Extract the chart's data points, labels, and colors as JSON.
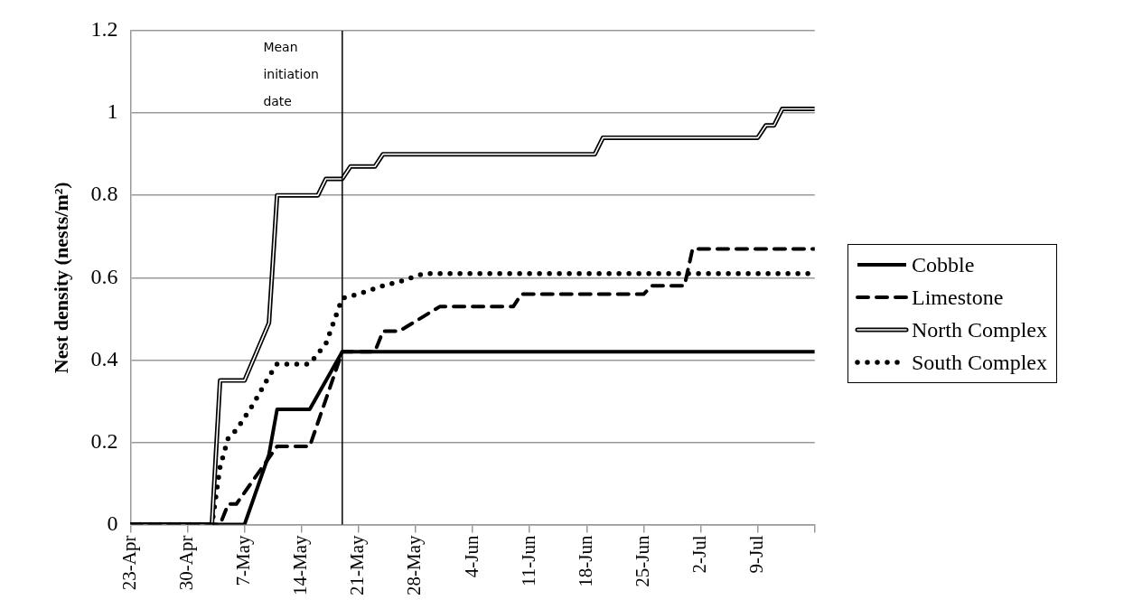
{
  "chart_data": {
    "type": "line",
    "ylabel": "Nest density (nests/m²)",
    "xlim": [
      "--04-23",
      "--07-16"
    ],
    "xticks": [
      {
        "value": "--04-23",
        "label": "23-Apr"
      },
      {
        "value": "--04-30",
        "label": "30-Apr"
      },
      {
        "value": "--05-07",
        "label": "7-May"
      },
      {
        "value": "--05-14",
        "label": "14-May"
      },
      {
        "value": "--05-21",
        "label": "21-May"
      },
      {
        "value": "--05-28",
        "label": "28-May"
      },
      {
        "value": "--06-04",
        "label": "4-Jun"
      },
      {
        "value": "--06-11",
        "label": "11-Jun"
      },
      {
        "value": "--06-18",
        "label": "18-Jun"
      },
      {
        "value": "--06-25",
        "label": "25-Jun"
      },
      {
        "value": "--07-02",
        "label": "2-Jul"
      },
      {
        "value": "--07-09",
        "label": "9-Jul"
      },
      {
        "value": "--07-16",
        "label": null
      }
    ],
    "ylim": [
      0,
      1.2
    ],
    "yticks": [
      0,
      0.2,
      0.4,
      0.6,
      0.8,
      1,
      1.2
    ],
    "grid": "y",
    "legend": "right",
    "ref_lines": [
      {
        "axis": "x",
        "value": "--05-19",
        "label": "Mean initiation date",
        "color": "#000000"
      }
    ],
    "series": [
      {
        "name": "Cobble",
        "color": "#000000",
        "line_style": "solid",
        "x": [
          "--04-23",
          "--05-07",
          "--05-10",
          "--05-11",
          "--05-15",
          "--05-19",
          "--07-16"
        ],
        "values": [
          0,
          0,
          0.17,
          0.28,
          0.28,
          0.42,
          0.42
        ]
      },
      {
        "name": "Limestone",
        "color": "#000000",
        "line_style": "dashed",
        "x": [
          "--04-23",
          "--05-04",
          "--05-05",
          "--05-06",
          "--05-11",
          "--05-15",
          "--05-19",
          "--05-23",
          "--05-24",
          "--05-26",
          "--05-31",
          "--06-09",
          "--06-10",
          "--06-25",
          "--06-26",
          "--06-30",
          "--07-01",
          "--07-16"
        ],
        "values": [
          0,
          0,
          0.05,
          0.05,
          0.19,
          0.19,
          0.42,
          0.42,
          0.47,
          0.47,
          0.53,
          0.53,
          0.56,
          0.56,
          0.58,
          0.58,
          0.67,
          0.67
        ]
      },
      {
        "name": "North Complex",
        "color": "#000000",
        "line_style": "solid",
        "x": [
          "--04-23",
          "--05-03",
          "--05-04",
          "--05-07",
          "--05-10",
          "--05-11",
          "--05-16",
          "--05-17",
          "--05-19",
          "--05-20",
          "--05-23",
          "--05-24",
          "--06-19",
          "--06-20",
          "--07-09",
          "--07-10",
          "--07-11",
          "--07-12",
          "--07-16"
        ],
        "values": [
          0,
          0,
          0.35,
          0.35,
          0.49,
          0.8,
          0.8,
          0.84,
          0.84,
          0.87,
          0.87,
          0.9,
          0.9,
          0.94,
          0.94,
          0.97,
          0.97,
          1.01,
          1.01
        ]
      },
      {
        "name": "South Complex",
        "color": "#000000",
        "line_style": "dotted",
        "x": [
          "--04-23",
          "--05-03",
          "--05-04",
          "--05-05",
          "--05-06",
          "--05-08",
          "--05-10",
          "--05-11",
          "--05-15",
          "--05-17",
          "--05-19",
          "--05-21",
          "--05-24",
          "--05-26",
          "--05-29",
          "--07-16"
        ],
        "values": [
          0,
          0,
          0.14,
          0.21,
          0.23,
          0.29,
          0.36,
          0.39,
          0.39,
          0.44,
          0.55,
          0.56,
          0.58,
          0.59,
          0.61,
          0.61
        ]
      }
    ]
  }
}
